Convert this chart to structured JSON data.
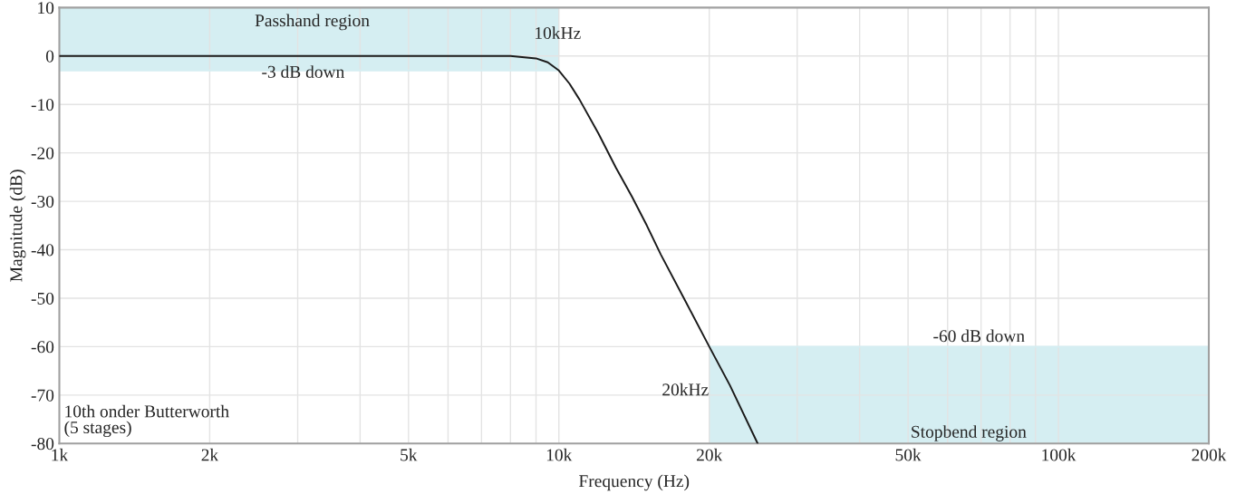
{
  "chart_data": {
    "type": "line",
    "xlabel": "Frequency (Hz)",
    "ylabel": "Magnitude (dB)",
    "log": "x",
    "grid": true,
    "marker": "none",
    "line_style": "solid",
    "xlim": [
      1000,
      200000
    ],
    "ylim": [
      -80,
      10
    ],
    "xticks": [
      {
        "value": 1000,
        "label": "1k"
      },
      {
        "value": 2000,
        "label": "2k"
      },
      {
        "value": 3000,
        "label": null
      },
      {
        "value": 4000,
        "label": null
      },
      {
        "value": 5000,
        "label": "5k"
      },
      {
        "value": 6000,
        "label": null
      },
      {
        "value": 7000,
        "label": null
      },
      {
        "value": 8000,
        "label": null
      },
      {
        "value": 9000,
        "label": null
      },
      {
        "value": 10000,
        "label": "10k"
      },
      {
        "value": 20000,
        "label": "20k"
      },
      {
        "value": 30000,
        "label": null
      },
      {
        "value": 40000,
        "label": null
      },
      {
        "value": 50000,
        "label": "50k"
      },
      {
        "value": 60000,
        "label": null
      },
      {
        "value": 70000,
        "label": null
      },
      {
        "value": 80000,
        "label": null
      },
      {
        "value": 90000,
        "label": null
      },
      {
        "value": 100000,
        "label": "100k"
      },
      {
        "value": 200000,
        "label": "200k"
      }
    ],
    "yticks": [
      -80,
      -70,
      -60,
      -50,
      -40,
      -30,
      -20,
      -10,
      0,
      10
    ],
    "x": [
      1000,
      2000,
      4000,
      6000,
      8000,
      9000,
      9500,
      10000,
      10500,
      11000,
      12000,
      13000,
      14000,
      15000,
      16000,
      18000,
      20000,
      22000,
      25000
    ],
    "series": [
      {
        "type": "line",
        "color": "#d5eef2",
        "x": [
          1000,
          10000
        ],
        "values": [
          -3,
          -3
        ],
        "lower": [
          -3,
          -3
        ],
        "upper": [
          10,
          10
        ]
      },
      {
        "type": "line",
        "color": "#d5eef2",
        "x": [
          20000,
          200000
        ],
        "values": [
          -60,
          -60
        ],
        "lower": [
          -80,
          -80
        ],
        "upper": [
          -60,
          -60
        ]
      },
      {
        "color": "#1a1a1a",
        "values": [
          0,
          0,
          0,
          0,
          0,
          -0.5,
          -1.3,
          -3,
          -5.7,
          -9,
          -16,
          -23,
          -29,
          -35,
          -41,
          -51,
          -60,
          -68,
          -80
        ]
      }
    ],
    "annotations": [
      "Passhand region",
      "10kHz",
      "-3 dB down",
      "-60 dB down",
      "20kHz",
      "Stopbend region",
      "10th onder Butterworth\n(5 stages)"
    ]
  }
}
